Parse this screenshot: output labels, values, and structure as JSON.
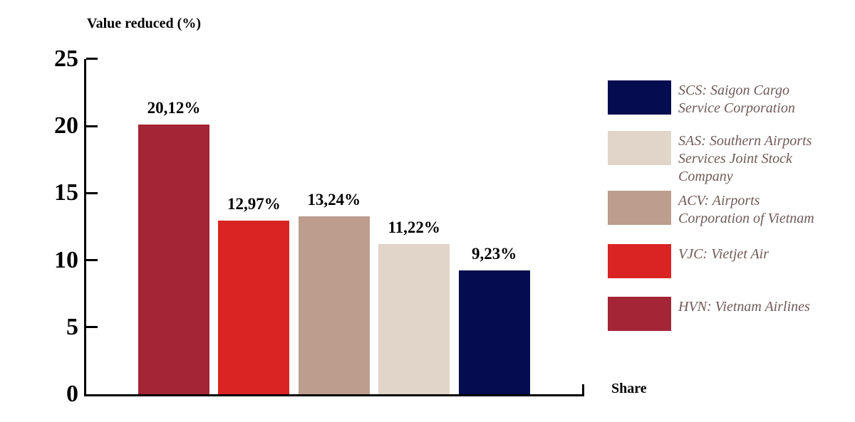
{
  "chart_data": {
    "type": "bar",
    "title": "Value reduced (%)",
    "xlabel": "Share",
    "ylabel": "Value reduced (%)",
    "ylim": [
      0,
      25
    ],
    "yticks": [
      0,
      5,
      10,
      15,
      20,
      25
    ],
    "grid": false,
    "legend_position": "right",
    "categories": [
      "HVN",
      "VJC",
      "ACV",
      "SAS",
      "SCS"
    ],
    "values": [
      20.12,
      12.97,
      13.24,
      11.22,
      9.23
    ],
    "bar_labels": [
      "20,12%",
      "12,97%",
      "13,24%",
      "11,22%",
      "9,23%"
    ],
    "bar_colors": [
      "#A32536",
      "#DA2423",
      "#BD9D8E",
      "#E1D5C9",
      "#060C50"
    ],
    "legend": [
      {
        "code": "SCS",
        "label": "SCS: Saigon Cargo Service Corporation",
        "color": "#060C50"
      },
      {
        "code": "SAS",
        "label": "SAS: Southern Airports Services Joint Stock Company",
        "color": "#E1D5C9"
      },
      {
        "code": "ACV",
        "label": "ACV: Airports Corporation of Vietnam",
        "color": "#BD9D8E"
      },
      {
        "code": "VJC",
        "label": "VJC: Vietjet Air",
        "color": "#DA2423"
      },
      {
        "code": "HVN",
        "label": "HVN: Vietnam Airlines",
        "color": "#A32536"
      }
    ]
  }
}
